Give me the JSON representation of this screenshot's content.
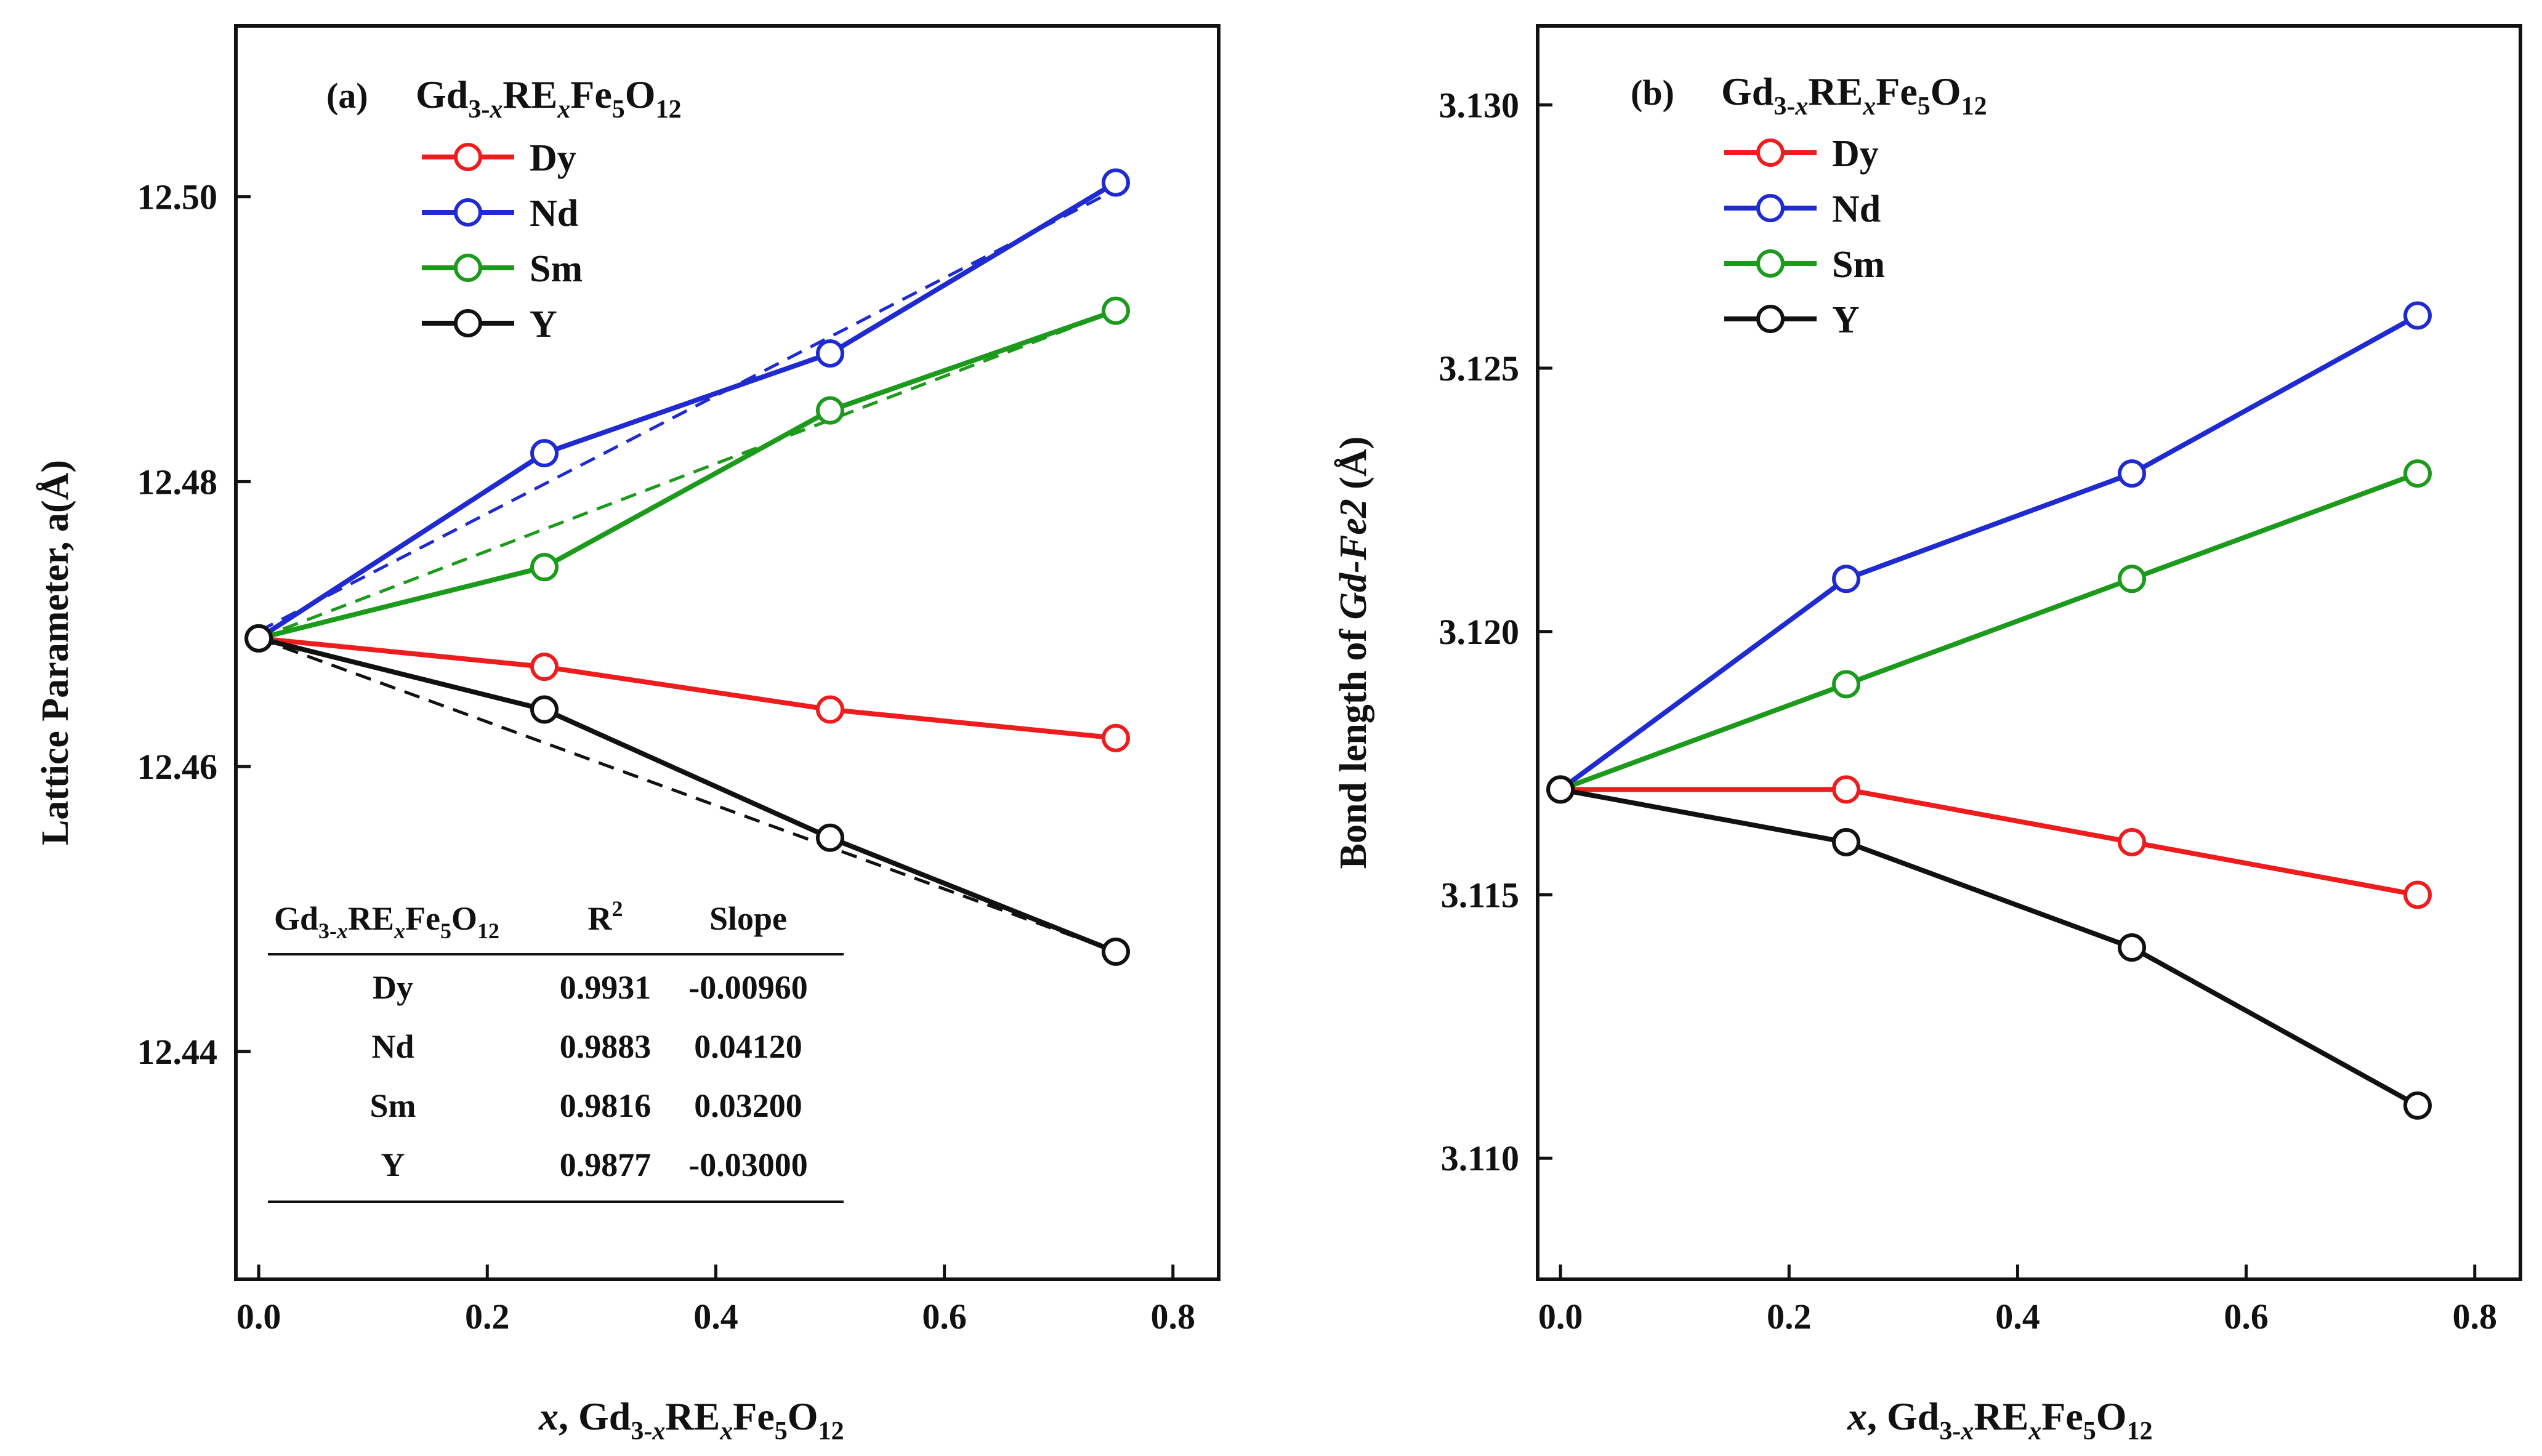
{
  "chart_data": [
    {
      "type": "line",
      "panel_label": "(a)",
      "title": "Gd3-xRExFe5O12",
      "xlabel": "x, Gd3-xRExFe5O12",
      "ylabel": "Lattice Parameter, a(Å)",
      "xlim": [
        -0.02,
        0.84
      ],
      "ylim": [
        12.424,
        12.512
      ],
      "x_ticks": [
        0.0,
        0.2,
        0.4,
        0.6,
        0.8
      ],
      "x_tick_labels": [
        "0.0",
        "0.2",
        "0.4",
        "0.6",
        "0.8"
      ],
      "y_ticks": [
        12.44,
        12.46,
        12.48,
        12.5
      ],
      "y_tick_labels": [
        "12.44",
        "12.46",
        "12.48",
        "12.50"
      ],
      "x": [
        0.0,
        0.25,
        0.5,
        0.75
      ],
      "series": [
        {
          "name": "Dy",
          "color": "#ee1c1c",
          "values": [
            12.469,
            12.467,
            12.464,
            12.462
          ]
        },
        {
          "name": "Nd",
          "color": "#1f2bd0",
          "values": [
            12.469,
            12.482,
            12.489,
            12.501
          ]
        },
        {
          "name": "Sm",
          "color": "#1c9a1c",
          "values": [
            12.469,
            12.474,
            12.485,
            12.492
          ]
        },
        {
          "name": "Y",
          "color": "#111111",
          "values": [
            12.469,
            12.464,
            12.455,
            12.447
          ]
        }
      ],
      "fits": [
        {
          "name": "Nd",
          "color": "#1f2bd0",
          "x": [
            0.0,
            0.75
          ],
          "values": [
            12.4695,
            12.5005
          ]
        },
        {
          "name": "Sm",
          "color": "#1c9a1c",
          "x": [
            0.0,
            0.75
          ],
          "values": [
            12.469,
            12.492
          ]
        },
        {
          "name": "Y",
          "color": "#111111",
          "x": [
            0.0,
            0.75
          ],
          "values": [
            12.469,
            12.447
          ]
        }
      ],
      "legend_position": "top-left",
      "table": {
        "headers": [
          "Gd3-xRExFe5O12",
          "R2",
          "Slope"
        ],
        "rows": [
          [
            "Dy",
            "0.9931",
            "-0.00960"
          ],
          [
            "Nd",
            "0.9883",
            "0.04120"
          ],
          [
            "Sm",
            "0.9816",
            "0.03200"
          ],
          [
            "Y",
            "0.9877",
            "-0.03000"
          ]
        ]
      }
    },
    {
      "type": "line",
      "panel_label": "(b)",
      "title": "Gd3-xRExFe5O12",
      "xlabel": "x, Gd3-xRExFe5O12",
      "ylabel": "Bond length of Gd-Fe2 (Å)",
      "xlim": [
        -0.02,
        0.84
      ],
      "ylim": [
        3.1077,
        3.1315
      ],
      "x_ticks": [
        0.0,
        0.2,
        0.4,
        0.6,
        0.8
      ],
      "x_tick_labels": [
        "0.0",
        "0.2",
        "0.4",
        "0.6",
        "0.8"
      ],
      "y_ticks": [
        3.11,
        3.115,
        3.12,
        3.125,
        3.13
      ],
      "y_tick_labels": [
        "3.110",
        "3.115",
        "3.120",
        "3.125",
        "3.130"
      ],
      "x": [
        0.0,
        0.25,
        0.5,
        0.75
      ],
      "series": [
        {
          "name": "Dy",
          "color": "#ee1c1c",
          "values": [
            3.117,
            3.117,
            3.116,
            3.115
          ]
        },
        {
          "name": "Nd",
          "color": "#1f2bd0",
          "values": [
            3.117,
            3.121,
            3.123,
            3.126
          ]
        },
        {
          "name": "Sm",
          "color": "#1c9a1c",
          "values": [
            3.117,
            3.119,
            3.121,
            3.123
          ]
        },
        {
          "name": "Y",
          "color": "#111111",
          "values": [
            3.117,
            3.116,
            3.114,
            3.111
          ]
        }
      ],
      "legend_position": "top-left"
    }
  ]
}
